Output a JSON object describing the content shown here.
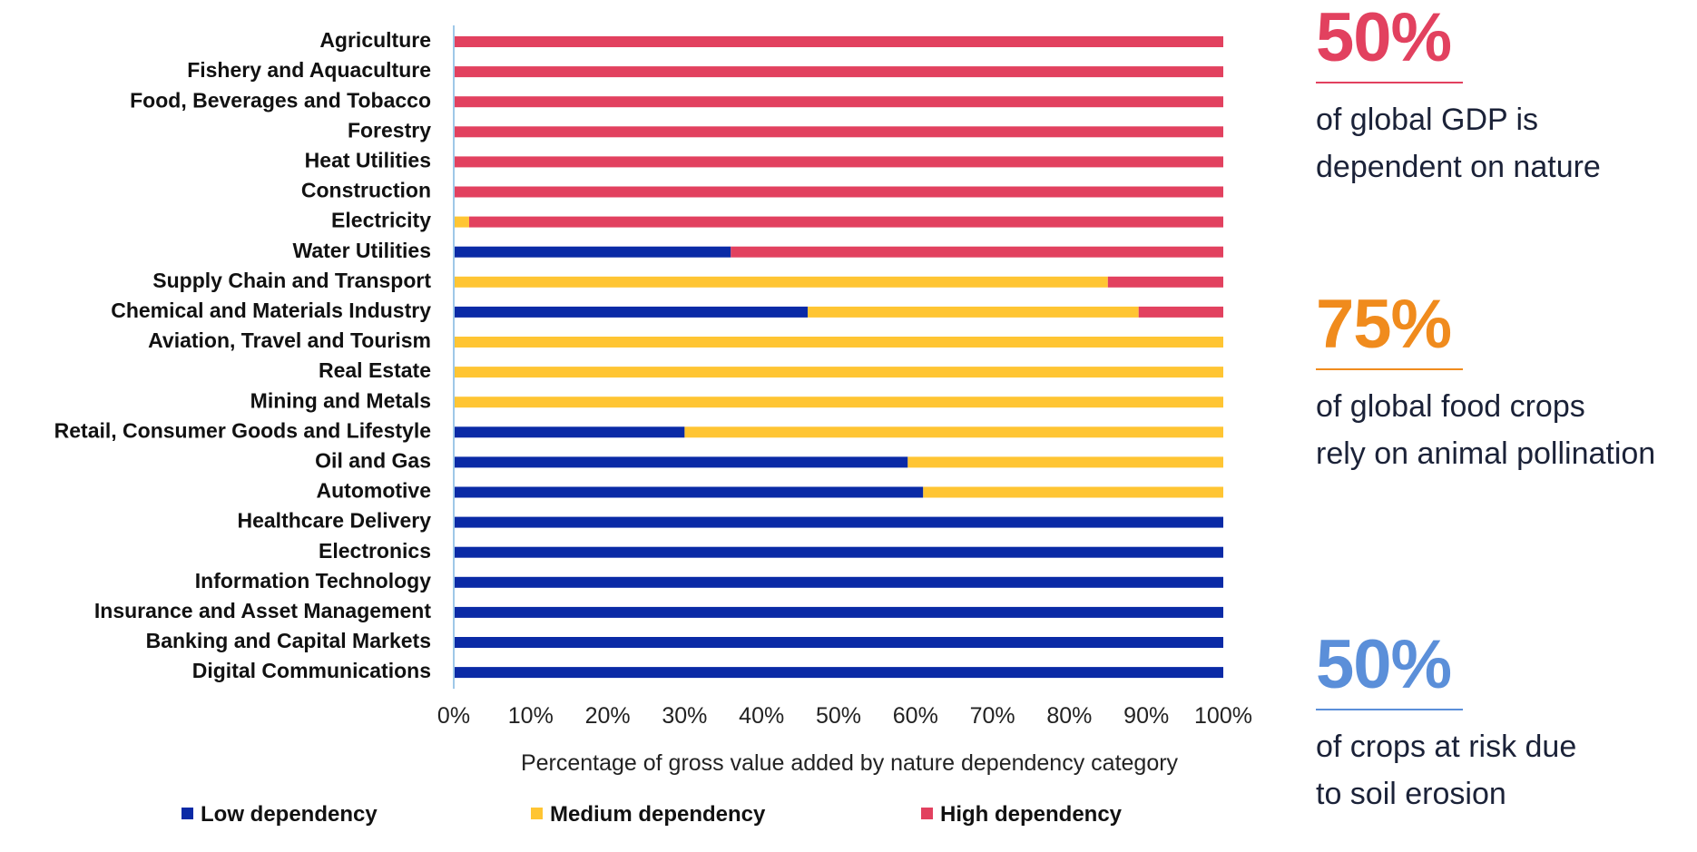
{
  "colors": {
    "low": "#0a2aa6",
    "medium": "#ffc533",
    "high": "#e2415f",
    "axis_line": "#9fc8e8",
    "stat1": "#e2415f",
    "stat2": "#f08b1d",
    "stat3": "#5b8fd9"
  },
  "chart_data": {
    "type": "bar",
    "orientation": "horizontal",
    "stacked": true,
    "categories": [
      "Agriculture",
      "Fishery and Aquaculture",
      "Food, Beverages and Tobacco",
      "Forestry",
      "Heat Utilities",
      "Construction",
      "Electricity",
      "Water Utilities",
      "Supply Chain and Transport",
      "Chemical and Materials Industry",
      "Aviation, Travel and Tourism",
      "Real Estate",
      "Mining and Metals",
      "Retail, Consumer Goods and Lifestyle",
      "Oil and Gas",
      "Automotive",
      "Healthcare Delivery",
      "Electronics",
      "Information Technology",
      "Insurance and Asset Management",
      "Banking and Capital Markets",
      "Digital Communications"
    ],
    "series": [
      {
        "name": "Low dependency",
        "color_key": "low",
        "values": [
          0,
          0,
          0,
          0,
          0,
          0,
          0,
          36,
          0,
          46,
          0,
          0,
          0,
          30,
          59,
          61,
          100,
          100,
          100,
          100,
          100,
          100
        ]
      },
      {
        "name": "Medium dependency",
        "color_key": "medium",
        "values": [
          0,
          0,
          0,
          0,
          0,
          0,
          2,
          0,
          85,
          43,
          100,
          100,
          100,
          70,
          41,
          39,
          0,
          0,
          0,
          0,
          0,
          0
        ]
      },
      {
        "name": "High dependency",
        "color_key": "high",
        "values": [
          100,
          100,
          100,
          100,
          100,
          100,
          98,
          64,
          15,
          11,
          0,
          0,
          0,
          0,
          0,
          0,
          0,
          0,
          0,
          0,
          0,
          0
        ]
      }
    ],
    "xlim": [
      0,
      100
    ],
    "xticks": [
      "0%",
      "10%",
      "20%",
      "30%",
      "40%",
      "50%",
      "60%",
      "70%",
      "80%",
      "90%",
      "100%"
    ],
    "xlabel": "Percentage of gross value added by nature dependency category",
    "ylabel": "",
    "legend_position": "bottom",
    "grid": false
  },
  "stats": [
    {
      "value": "50%",
      "color_key": "stat1",
      "lines": [
        "of global GDP is",
        "dependent on nature"
      ]
    },
    {
      "value": "75%",
      "color_key": "stat2",
      "lines": [
        "of global food crops",
        "rely on animal pollination"
      ]
    },
    {
      "value": "50%",
      "color_key": "stat3",
      "lines": [
        "of crops at risk due",
        "to soil erosion"
      ]
    }
  ]
}
